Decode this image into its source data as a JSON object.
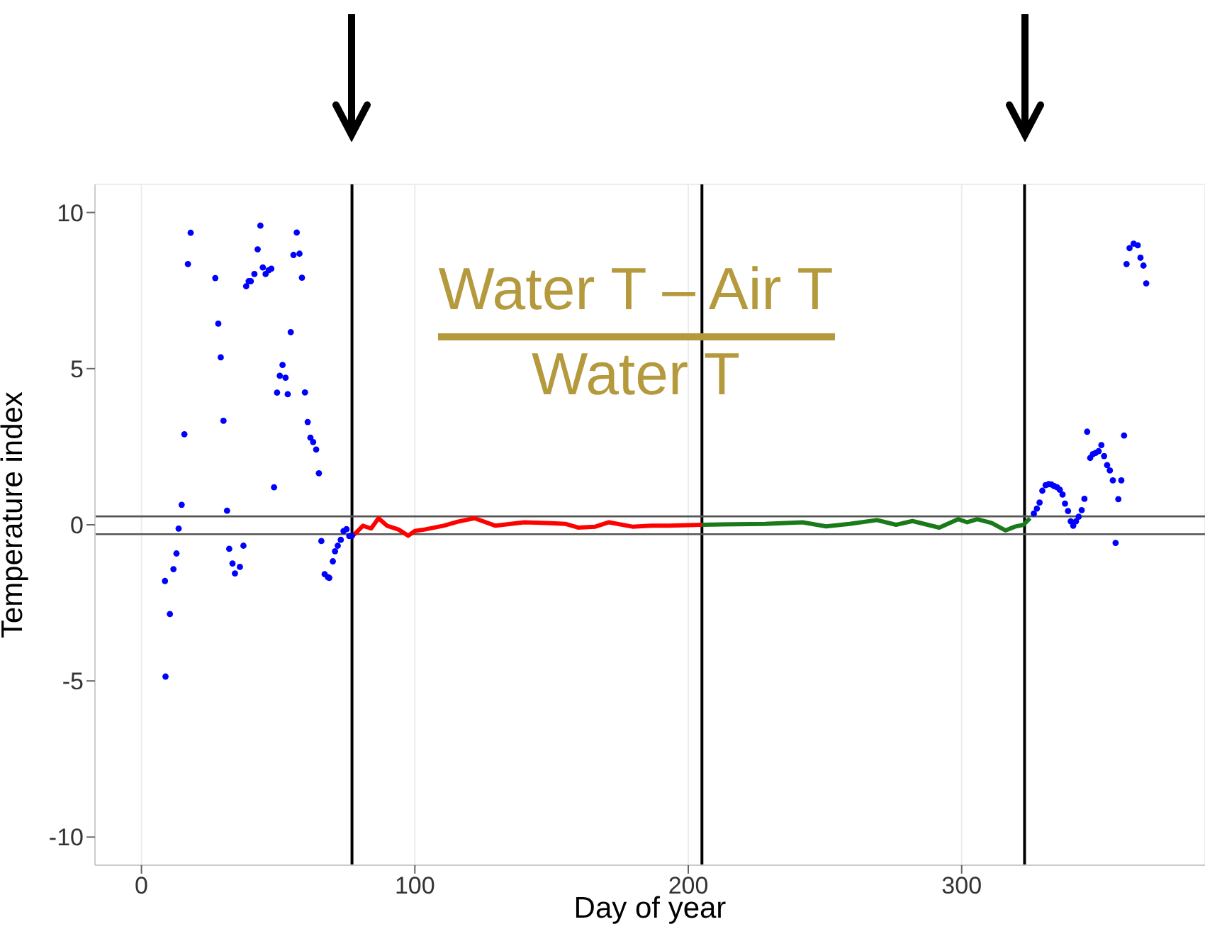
{
  "chart_data": {
    "type": "scatter",
    "xlabel": "Day of year",
    "ylabel": "Temperature index",
    "annotations": [
      "Water T – Air T",
      "Water T"
    ],
    "xlim": [
      -17,
      389
    ],
    "xticks": [
      0,
      100,
      200,
      300
    ],
    "ylim": [
      -10.9,
      10.9
    ],
    "yticks": [
      -10,
      -5,
      0,
      5,
      10
    ],
    "grid": true,
    "legend": false,
    "ref_lines": [
      {
        "axis": "x",
        "value": 77,
        "color": "#000000"
      },
      {
        "axis": "x",
        "value": 205,
        "color": "#000000"
      },
      {
        "axis": "x",
        "value": 323,
        "color": "#000000"
      },
      {
        "axis": "y",
        "value": 0.27,
        "color": "#555555"
      },
      {
        "axis": "y",
        "value": -0.3,
        "color": "#555555"
      }
    ],
    "series": [
      {
        "color": "#0000ff",
        "marker": "circle",
        "x": [
          8.8,
          10.4,
          8.6,
          11.7,
          12.8,
          13.6,
          14.7,
          15.7,
          17,
          18,
          27,
          28.1,
          29,
          30,
          31.3,
          32.1,
          33.3,
          34.2,
          36,
          37.3,
          38.3,
          39.2,
          40,
          41.3,
          42.5,
          43.5,
          44.4,
          45.4,
          46.5,
          47.5,
          48.5,
          49.6,
          50.6,
          51.6,
          52.7,
          53.5,
          54.6,
          55.6,
          56.8,
          57.8,
          58.7,
          59.8,
          60.8,
          61.8,
          62.8,
          63.9,
          64.9,
          65.8,
          67,
          68.2,
          68.7,
          70,
          70.8,
          71.8,
          72.9,
          73.9,
          75,
          76,
          77,
          326.4,
          327.5,
          328.5,
          329.5,
          330.7,
          331.8,
          332.8,
          333.8,
          334.9,
          335.9,
          336.9,
          337.8,
          338.9,
          339.9,
          340.8,
          341.8,
          342.8,
          343.9,
          344.9,
          345.9,
          347,
          348,
          349,
          350.1,
          351.1,
          352.1,
          353.2,
          354.2,
          355.3,
          356.3,
          357.3,
          358.4,
          359.4,
          360.3,
          361.4,
          362.9,
          364.4,
          365.4,
          366.5,
          367.5
        ],
        "values": [
          -4.86,
          -2.86,
          -1.8,
          -1.42,
          -0.92,
          -0.12,
          0.64,
          2.9,
          8.35,
          9.35,
          7.9,
          6.44,
          5.36,
          3.33,
          0.45,
          -0.77,
          -1.24,
          -1.56,
          -1.35,
          -0.67,
          7.64,
          7.8,
          7.8,
          8.03,
          8.82,
          9.58,
          8.24,
          8.03,
          8.15,
          8.2,
          1.2,
          4.23,
          4.77,
          5.12,
          4.71,
          4.18,
          6.17,
          8.64,
          9.36,
          8.68,
          7.91,
          4.24,
          3.29,
          2.79,
          2.65,
          2.41,
          1.65,
          -0.52,
          -1.58,
          -1.68,
          -1.7,
          -1.17,
          -0.85,
          -0.67,
          -0.48,
          -0.2,
          -0.14,
          -0.36,
          -0.35,
          0.36,
          0.52,
          0.71,
          1.09,
          1.27,
          1.3,
          1.29,
          1.24,
          1.2,
          1.12,
          0.97,
          0.68,
          0.44,
          0.11,
          -0.03,
          0.11,
          0.26,
          0.47,
          0.83,
          2.98,
          2.14,
          2.26,
          2.3,
          2.36,
          2.55,
          2.2,
          1.91,
          1.74,
          1.42,
          -0.58,
          0.82,
          1.42,
          2.86,
          8.35,
          8.86,
          9.0,
          8.95,
          8.55,
          8.3,
          7.73
        ]
      },
      {
        "type": "line",
        "color": "#ff0000",
        "marker": "none",
        "line_style": "solid",
        "x": [
          77,
          78,
          81,
          84,
          86.7,
          89.8,
          94,
          97.6,
          100,
          103.6,
          110.5,
          115.7,
          121.8,
          129.5,
          140,
          150,
          155,
          159.7,
          166,
          171,
          179.6,
          186.5,
          193,
          205
        ],
        "values": [
          -0.35,
          -0.3,
          -0.03,
          -0.12,
          0.21,
          -0.03,
          -0.15,
          -0.35,
          -0.2,
          -0.15,
          -0.03,
          0.1,
          0.21,
          -0.03,
          0.08,
          0.05,
          0.03,
          -0.09,
          -0.06,
          0.08,
          -0.06,
          -0.03,
          -0.03,
          0
        ]
      },
      {
        "type": "line",
        "color": "#1a7a1a",
        "marker": "none",
        "line_style": "solid",
        "x": [
          205,
          228,
          241.8,
          250.4,
          259,
          269,
          276,
          282,
          291.8,
          298.8,
          302,
          305.7,
          310.9,
          316,
          319.5,
          322.6,
          325
        ],
        "values": [
          0,
          0.03,
          0.08,
          -0.05,
          0.03,
          0.15,
          0,
          0.12,
          -0.09,
          0.18,
          0.08,
          0.18,
          0.06,
          -0.18,
          -0.06,
          0,
          0.21
        ]
      }
    ]
  }
}
